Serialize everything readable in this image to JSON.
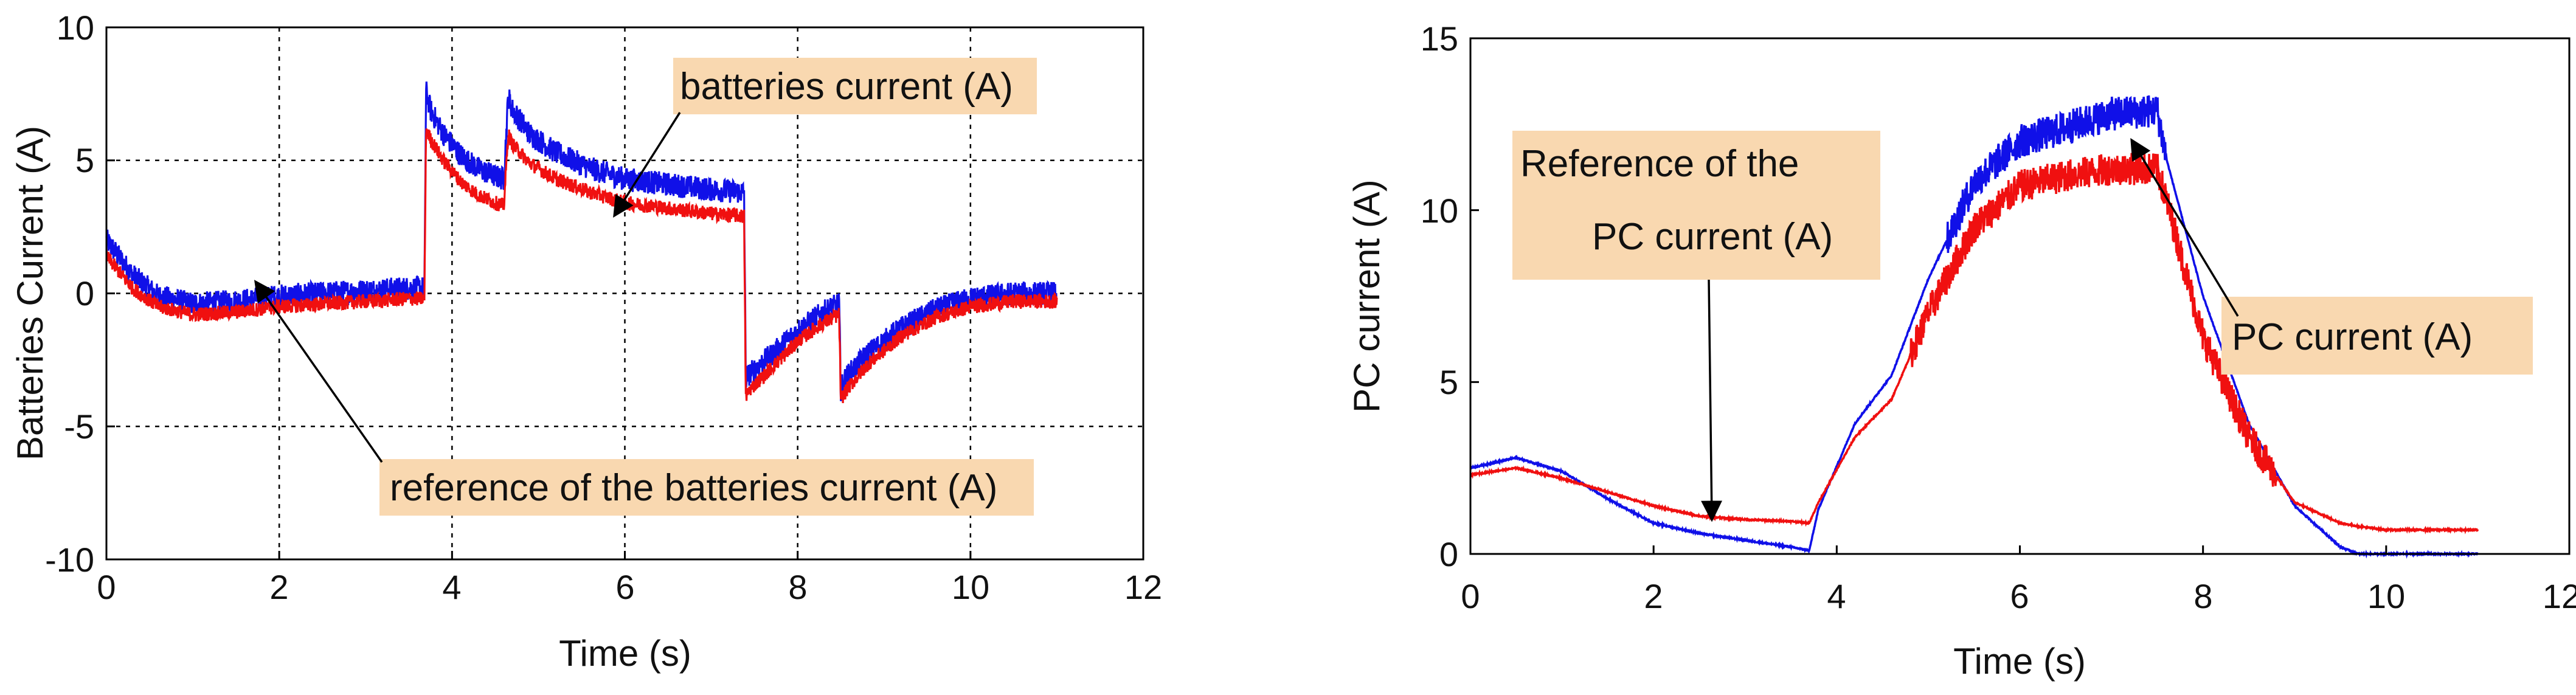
{
  "chart_data": [
    {
      "type": "line",
      "xlabel": "Time (s)",
      "ylabel": "Batteries Current (A)",
      "xlim": [
        0,
        12
      ],
      "ylim": [
        -10,
        10
      ],
      "x_ticks": [
        0,
        2,
        4,
        6,
        8,
        10,
        12
      ],
      "y_ticks": [
        -10,
        -5,
        0,
        5,
        10
      ],
      "grid": true,
      "series": [
        {
          "name": "batteries current (A)",
          "color": "#1010e8",
          "noise": 0.9,
          "x": [
            0,
            0.3,
            0.6,
            1.0,
            1.5,
            2.0,
            2.5,
            3.0,
            3.5,
            3.68,
            3.7,
            3.75,
            3.9,
            4.1,
            4.3,
            4.5,
            4.6,
            4.65,
            4.7,
            4.9,
            5.2,
            5.6,
            6.0,
            6.5,
            7.0,
            7.38,
            7.4,
            7.45,
            7.7,
            8.0,
            8.3,
            8.48,
            8.5,
            8.55,
            8.8,
            9.2,
            9.6,
            10.0,
            10.5,
            11.0
          ],
          "y": [
            2.0,
            0.7,
            -0.1,
            -0.4,
            -0.3,
            -0.1,
            0.0,
            0.1,
            0.2,
            0.2,
            7.6,
            6.9,
            6.0,
            5.2,
            4.7,
            4.4,
            4.3,
            7.4,
            6.9,
            6.0,
            5.3,
            4.7,
            4.3,
            4.1,
            3.9,
            3.8,
            -3.2,
            -3.0,
            -2.3,
            -1.4,
            -0.7,
            -0.4,
            -3.6,
            -3.2,
            -2.3,
            -1.3,
            -0.6,
            -0.2,
            0.0,
            0.0
          ]
        },
        {
          "name": "reference of the batteries current (A)",
          "color": "#f01010",
          "noise": 0.55,
          "x": [
            0,
            0.3,
            0.6,
            1.0,
            1.5,
            2.0,
            2.5,
            3.0,
            3.5,
            3.68,
            3.7,
            3.75,
            3.9,
            4.1,
            4.3,
            4.5,
            4.6,
            4.65,
            4.7,
            4.9,
            5.2,
            5.6,
            6.0,
            6.5,
            7.0,
            7.38,
            7.4,
            7.45,
            7.7,
            8.0,
            8.3,
            8.48,
            8.5,
            8.55,
            8.8,
            9.2,
            9.6,
            10.0,
            10.5,
            11.0
          ],
          "y": [
            1.4,
            0.2,
            -0.5,
            -0.8,
            -0.7,
            -0.5,
            -0.4,
            -0.3,
            -0.2,
            -0.2,
            6.2,
            5.8,
            5.0,
            4.2,
            3.7,
            3.4,
            3.3,
            6.0,
            5.6,
            4.9,
            4.3,
            3.8,
            3.4,
            3.2,
            3.0,
            2.9,
            -3.9,
            -3.6,
            -2.8,
            -1.8,
            -1.1,
            -0.8,
            -4.0,
            -3.7,
            -2.7,
            -1.6,
            -0.9,
            -0.5,
            -0.3,
            -0.3
          ]
        }
      ],
      "annotations": [
        {
          "text": "batteries current (A)",
          "arrow_to": [
            5.9,
            3.0
          ]
        },
        {
          "text": "reference of the batteries current (A)",
          "arrow_to": [
            1.75,
            0.0
          ]
        }
      ]
    },
    {
      "type": "line",
      "xlabel": "Time (s)",
      "ylabel": "PC current (A)",
      "xlim": [
        0,
        12
      ],
      "ylim": [
        0,
        15
      ],
      "x_ticks": [
        0,
        2,
        4,
        6,
        8,
        10,
        12
      ],
      "y_ticks": [
        0,
        5,
        10,
        15
      ],
      "grid": false,
      "series": [
        {
          "name": "PC current (A)",
          "color": "#1010e8",
          "x": [
            0,
            0.5,
            1.0,
            1.5,
            2.0,
            2.5,
            3.0,
            3.5,
            3.7,
            3.8,
            4.2,
            4.6,
            5.0,
            5.5,
            6.0,
            6.5,
            7.0,
            7.5,
            7.6,
            8.0,
            8.5,
            9.0,
            9.5,
            9.7,
            10.0,
            11.0
          ],
          "y": [
            2.5,
            2.8,
            2.4,
            1.6,
            0.9,
            0.6,
            0.4,
            0.2,
            0.1,
            1.3,
            3.8,
            5.2,
            8.0,
            10.8,
            12.0,
            12.4,
            12.8,
            12.9,
            11.5,
            7.5,
            3.8,
            1.4,
            0.2,
            0.0,
            0.0,
            0.0
          ],
          "noise_range": [
            5.2,
            7.6
          ],
          "noise": 1.0
        },
        {
          "name": "Reference of the PC current (A)",
          "color": "#f01010",
          "x": [
            0,
            0.5,
            1.0,
            1.5,
            2.0,
            2.5,
            3.0,
            3.5,
            3.7,
            3.8,
            4.2,
            4.6,
            5.0,
            5.5,
            6.0,
            6.5,
            7.0,
            7.5,
            7.6,
            8.0,
            8.5,
            9.0,
            9.5,
            9.7,
            10.0,
            11.0
          ],
          "y": [
            2.3,
            2.5,
            2.2,
            1.8,
            1.4,
            1.1,
            1.0,
            0.95,
            0.9,
            1.5,
            3.4,
            4.5,
            7.0,
            9.5,
            10.7,
            11.0,
            11.2,
            11.2,
            10.3,
            6.3,
            3.4,
            1.5,
            0.9,
            0.8,
            0.7,
            0.7
          ],
          "noise_range": [
            4.8,
            8.8
          ],
          "noise": 0.95
        }
      ],
      "annotations": [
        {
          "text": "Reference of the PC current (A)",
          "lines": [
            "Reference of the",
            "PC current (A)"
          ],
          "arrow_to": [
            2.7,
            0.9
          ]
        },
        {
          "text": "PC current (A)",
          "arrow_to": [
            7.2,
            12.0
          ]
        }
      ]
    }
  ]
}
